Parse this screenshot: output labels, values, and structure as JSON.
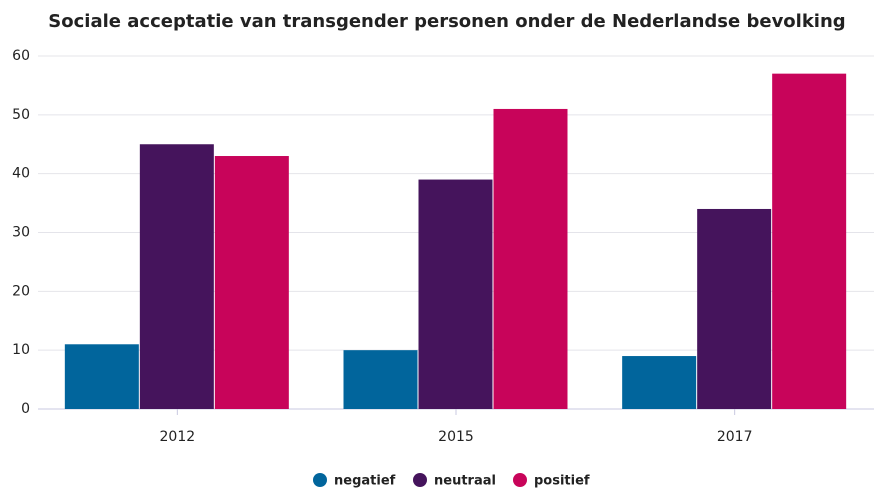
{
  "chart_data": {
    "type": "bar",
    "title": "Sociale acceptatie van transgender personen onder de Nederlandse bevolking",
    "categories": [
      "2012",
      "2015",
      "2017"
    ],
    "series": [
      {
        "name": "negatief",
        "color": "#01659c",
        "values": [
          11,
          10,
          9
        ]
      },
      {
        "name": "neutraal",
        "color": "#45145c",
        "values": [
          45,
          39,
          34
        ]
      },
      {
        "name": "positief",
        "color": "#c8045a",
        "values": [
          43,
          51,
          57
        ]
      }
    ],
    "ylim": [
      0,
      60
    ],
    "yticks": [
      0,
      10,
      20,
      30,
      40,
      50,
      60
    ],
    "grid": true,
    "legend": "bottom"
  }
}
